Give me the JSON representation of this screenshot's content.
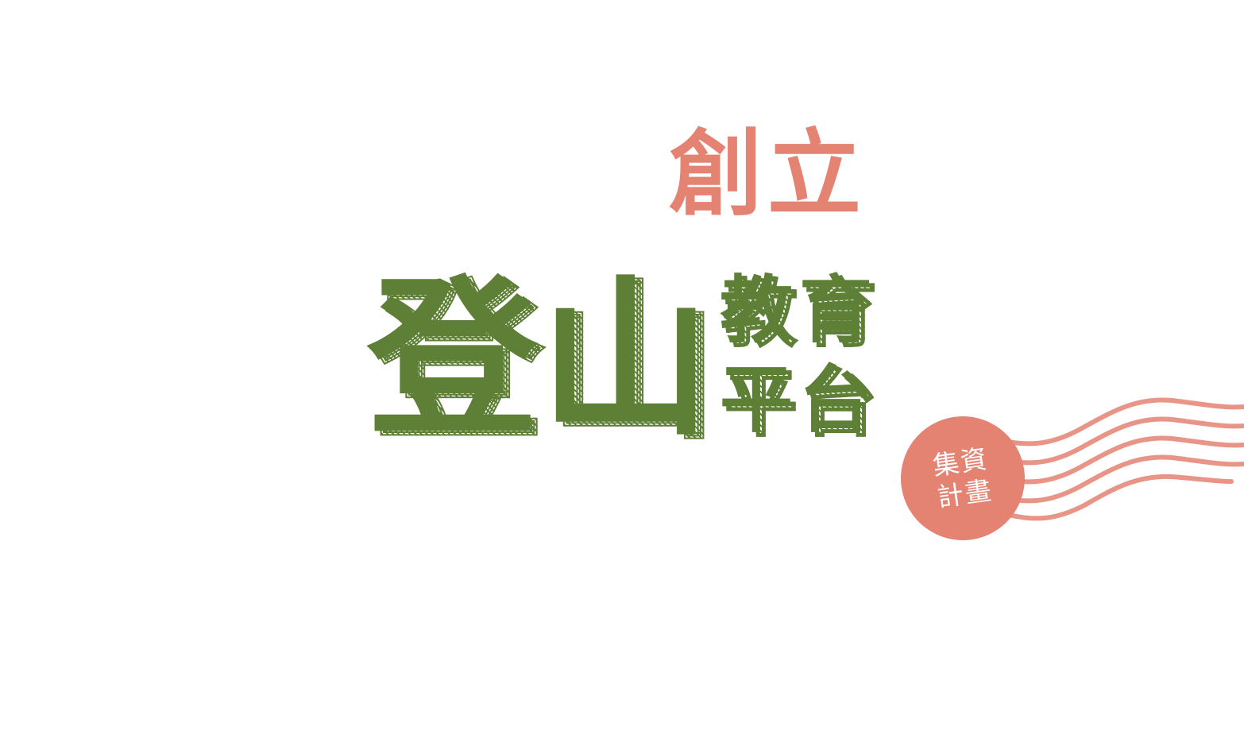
{
  "title": {
    "text": "創立",
    "color": "#e58373"
  },
  "headline": {
    "big_chars": [
      "登",
      "山"
    ],
    "small_chars": [
      "教",
      "育",
      "平",
      "台"
    ],
    "color": "#5e7f36",
    "shadow_color": "#5e7f36"
  },
  "stamp": {
    "line1": "集資",
    "line2": "計畫",
    "color": "#e58373",
    "text_color": "#ffffff",
    "icon": "postmark-waves-icon"
  }
}
